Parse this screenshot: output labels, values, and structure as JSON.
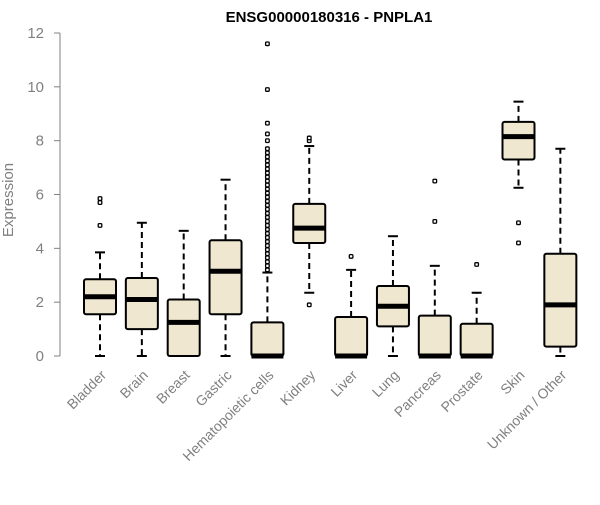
{
  "chart_data": {
    "type": "boxplot",
    "title": "ENSG00000180316 - PNPLA1",
    "xlabel": "",
    "ylabel": "Expression",
    "ylim": [
      0,
      12
    ],
    "yticks": [
      "0",
      "2",
      "4",
      "6",
      "8",
      "10",
      "12"
    ],
    "colors": {
      "box_fill": "#efe7cf",
      "line": "#000000",
      "axis": "#808080",
      "outlier": "#000000"
    },
    "categories": [
      "Bladder",
      "Brain",
      "Breast",
      "Gastric",
      "Hematopoietic cells",
      "Kidney",
      "Liver",
      "Lung",
      "Pancreas",
      "Prostate",
      "Skin",
      "Unknown / Other"
    ],
    "boxes": [
      {
        "name": "Bladder",
        "whisker_low": 0,
        "q1": 1.55,
        "median": 2.2,
        "q3": 2.85,
        "whisker_high": 3.85,
        "outliers": [
          4.85,
          5.7,
          5.85
        ]
      },
      {
        "name": "Brain",
        "whisker_low": 0,
        "q1": 1.0,
        "median": 2.1,
        "q3": 2.9,
        "whisker_high": 4.95,
        "outliers": []
      },
      {
        "name": "Breast",
        "whisker_low": 0,
        "q1": 0,
        "median": 1.25,
        "q3": 2.1,
        "whisker_high": 4.65,
        "outliers": []
      },
      {
        "name": "Gastric",
        "whisker_low": 0,
        "q1": 1.55,
        "median": 3.15,
        "q3": 4.3,
        "whisker_high": 6.55,
        "outliers": []
      },
      {
        "name": "Hematopoietic cells",
        "whisker_low": 0,
        "q1": 0,
        "median": 0,
        "q3": 1.25,
        "whisker_high": 3.1,
        "outliers": [
          3.2,
          3.35,
          3.5,
          3.65,
          3.8,
          3.95,
          4.1,
          4.25,
          4.4,
          4.55,
          4.7,
          4.85,
          5.0,
          5.15,
          5.3,
          5.45,
          5.6,
          5.75,
          5.9,
          6.05,
          6.2,
          6.35,
          6.5,
          6.65,
          6.8,
          6.95,
          7.1,
          7.25,
          7.4,
          7.55,
          7.7,
          8.0,
          8.25,
          8.65,
          9.9,
          11.6
        ]
      },
      {
        "name": "Kidney",
        "whisker_low": 2.35,
        "q1": 4.2,
        "median": 4.75,
        "q3": 5.65,
        "whisker_high": 7.8,
        "outliers": [
          1.9,
          8.0,
          8.1
        ]
      },
      {
        "name": "Liver",
        "whisker_low": 0,
        "q1": 0,
        "median": 0,
        "q3": 1.45,
        "whisker_high": 3.2,
        "outliers": [
          3.7
        ]
      },
      {
        "name": "Lung",
        "whisker_low": 0,
        "q1": 1.1,
        "median": 1.85,
        "q3": 2.6,
        "whisker_high": 4.45,
        "outliers": []
      },
      {
        "name": "Pancreas",
        "whisker_low": 0,
        "q1": 0,
        "median": 0,
        "q3": 1.5,
        "whisker_high": 3.35,
        "outliers": [
          5.0,
          6.5
        ]
      },
      {
        "name": "Prostate",
        "whisker_low": 0,
        "q1": 0,
        "median": 0,
        "q3": 1.2,
        "whisker_high": 2.35,
        "outliers": [
          3.4
        ]
      },
      {
        "name": "Skin",
        "whisker_low": 6.25,
        "q1": 7.3,
        "median": 8.15,
        "q3": 8.7,
        "whisker_high": 9.45,
        "outliers": [
          4.2,
          4.95
        ]
      },
      {
        "name": "Unknown / Other",
        "whisker_low": 0,
        "q1": 0.35,
        "median": 1.9,
        "q3": 3.8,
        "whisker_high": 7.7,
        "outliers": []
      }
    ]
  }
}
